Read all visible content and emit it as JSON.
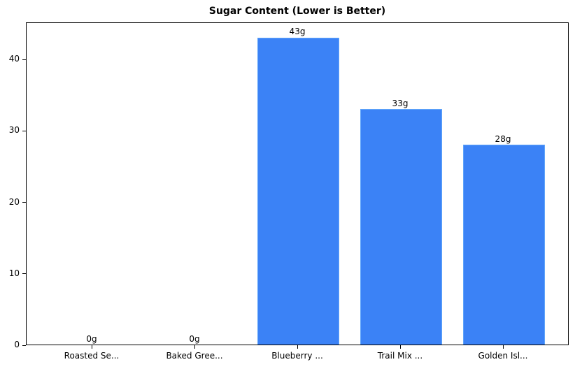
{
  "chart_data": {
    "type": "bar",
    "title": "Sugar Content (Lower is Better)",
    "xlabel": "",
    "ylabel": "",
    "categories": [
      "Roasted Se...",
      "Baked Gree...",
      "Blueberry ...",
      "Trail Mix ...",
      "Golden Isl..."
    ],
    "values": [
      0,
      0,
      43,
      33,
      28
    ],
    "value_labels": [
      "0g",
      "0g",
      "43g",
      "33g",
      "28g"
    ],
    "ylim": [
      0,
      45.2
    ],
    "yticks": [
      0,
      10,
      20,
      30,
      40
    ],
    "grid": false,
    "legend": null,
    "bar_color": "#3b82f6",
    "bar_edge_color": "#60a5fa"
  }
}
